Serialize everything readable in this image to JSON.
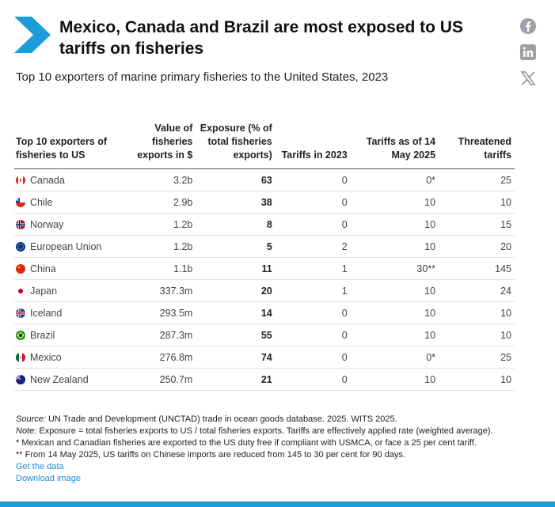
{
  "header": {
    "title": "Mexico, Canada and Brazil are most exposed to US tariffs on fisheries",
    "subtitle": "Top 10 exporters of marine primary fisheries to the United States, 2023"
  },
  "share": {
    "facebook": "facebook-icon",
    "linkedin": "linkedin-icon",
    "x": "x-icon"
  },
  "colors": {
    "accent": "#1d9cd8",
    "link": "#1d8fd6"
  },
  "chart_data": {
    "type": "table",
    "title": "Top 10 exporters of marine primary fisheries to the United States, 2023",
    "columns": [
      "Top 10 exporters of fisheries to US",
      "Value of fisheries exports in $",
      "Exposure (% of total fisheries exports)",
      "Tariffs in 2023",
      "Tariffs as of 14 May 2025",
      "Threatened tariffs"
    ],
    "rows": [
      {
        "country": "Canada",
        "flag": "canada",
        "value": "3.2b",
        "exposure": "63",
        "tariff_2023": "0",
        "tariff_2025": "0*",
        "threatened": "25"
      },
      {
        "country": "Chile",
        "flag": "chile",
        "value": "2.9b",
        "exposure": "38",
        "tariff_2023": "0",
        "tariff_2025": "10",
        "threatened": "10"
      },
      {
        "country": "Norway",
        "flag": "norway",
        "value": "1.2b",
        "exposure": "8",
        "tariff_2023": "0",
        "tariff_2025": "10",
        "threatened": "15"
      },
      {
        "country": "European Union",
        "flag": "eu",
        "value": "1.2b",
        "exposure": "5",
        "tariff_2023": "2",
        "tariff_2025": "10",
        "threatened": "20"
      },
      {
        "country": "China",
        "flag": "china",
        "value": "1.1b",
        "exposure": "11",
        "tariff_2023": "1",
        "tariff_2025": "30**",
        "threatened": "145"
      },
      {
        "country": "Japan",
        "flag": "japan",
        "value": "337.3m",
        "exposure": "20",
        "tariff_2023": "1",
        "tariff_2025": "10",
        "threatened": "24"
      },
      {
        "country": "Iceland",
        "flag": "iceland",
        "value": "293.5m",
        "exposure": "14",
        "tariff_2023": "0",
        "tariff_2025": "10",
        "threatened": "10"
      },
      {
        "country": "Brazil",
        "flag": "brazil",
        "value": "287.3m",
        "exposure": "55",
        "tariff_2023": "0",
        "tariff_2025": "10",
        "threatened": "10"
      },
      {
        "country": "Mexico",
        "flag": "mexico",
        "value": "276.8m",
        "exposure": "74",
        "tariff_2023": "0",
        "tariff_2025": "0*",
        "threatened": "25"
      },
      {
        "country": "New Zealand",
        "flag": "new-zealand",
        "value": "250.7m",
        "exposure": "21",
        "tariff_2023": "0",
        "tariff_2025": "10",
        "threatened": "10"
      }
    ]
  },
  "footer": {
    "source_label": "Source:",
    "source_text": " UN Trade and Development (UNCTAD) trade in ocean goods database. 2025. WITS 2025.",
    "note_label": "Note:",
    "note_text": " Exposure = total fisheries exports to US / total fisheries exports. Tariffs are effectively applied rate (weighted average).",
    "footnote1": "* Mexican and Canadian fisheries are exported to the US duty free if compliant with USMCA, or face a 25 per cent tariff.",
    "footnote2": "** From 14 May 2025, US tariffs on Chinese imports are reduced from 145 to 30 per cent for 90 days.",
    "link_data": "Get the data",
    "link_download": "Download image"
  }
}
